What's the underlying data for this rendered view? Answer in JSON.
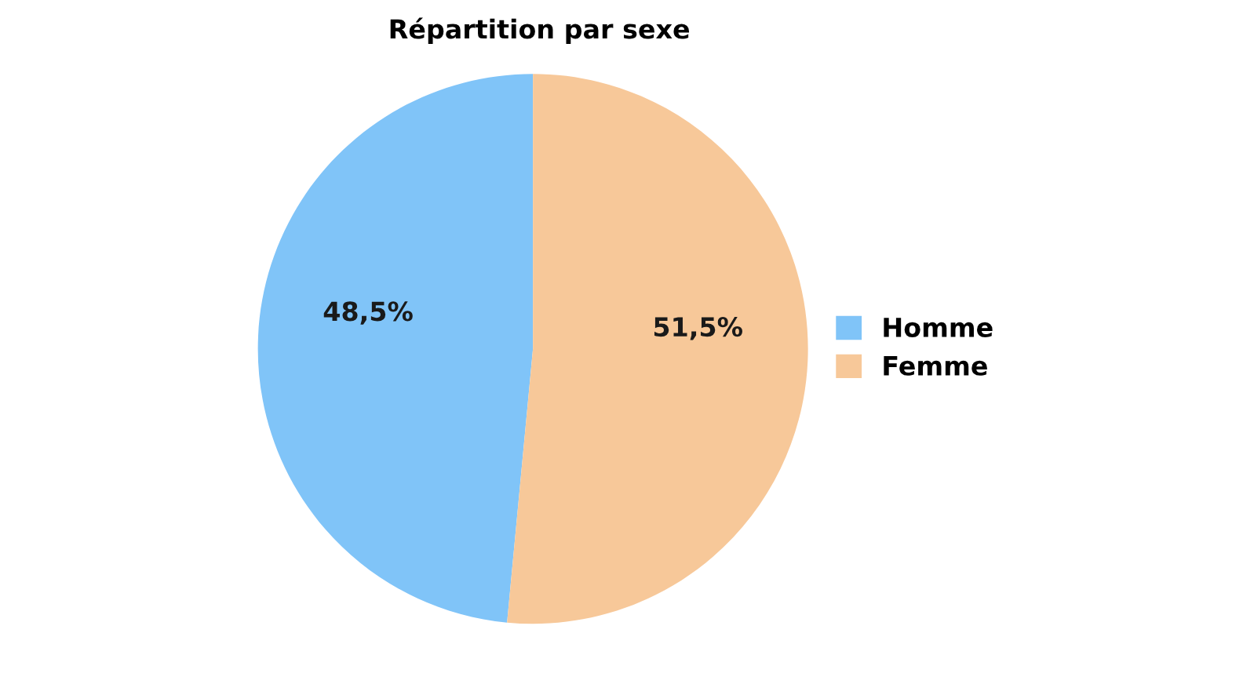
{
  "chart_data": {
    "type": "pie",
    "title": "Répartition par sexe",
    "categories": [
      "Homme",
      "Femme"
    ],
    "values": [
      48.5,
      51.5
    ],
    "value_labels": [
      "48,5%",
      "51,5%"
    ],
    "colors": [
      "#80c4f8",
      "#f7c899"
    ],
    "legend": "right"
  }
}
